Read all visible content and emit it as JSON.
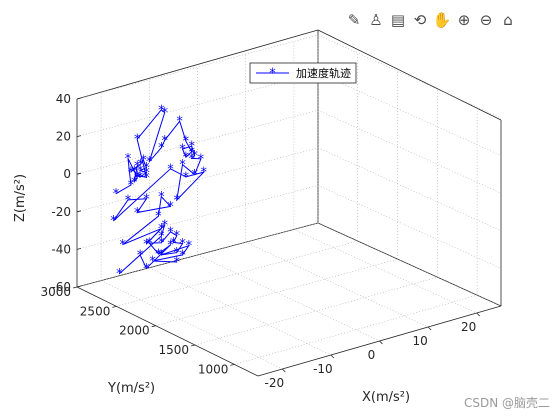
{
  "toolbar": {
    "buttons": [
      {
        "name": "brush-icon",
        "glyph": "✎"
      },
      {
        "name": "datatip-icon",
        "glyph": "♙"
      },
      {
        "name": "legend-toggle-icon",
        "glyph": "▤"
      },
      {
        "name": "rotate-icon",
        "glyph": "⟲"
      },
      {
        "name": "pan-icon",
        "glyph": "✋"
      },
      {
        "name": "zoom-in-icon",
        "glyph": "⊕"
      },
      {
        "name": "zoom-out-icon",
        "glyph": "⊖"
      },
      {
        "name": "home-icon",
        "glyph": "⌂"
      }
    ]
  },
  "watermark": "CSDN @脑壳二",
  "chart_data": {
    "type": "line3d",
    "title": "",
    "legend": {
      "entries": [
        "加速度轨迹"
      ],
      "location": "top-center"
    },
    "xlabel": "X(m/s²)",
    "ylabel": "Y(m/s²)",
    "zlabel": "Z(m/s²)",
    "xlim": [
      -25,
      25
    ],
    "ylim": [
      700,
      3000
    ],
    "zlim": [
      -60,
      40
    ],
    "xticks": [
      "-20",
      "-10",
      "0",
      "10",
      "20"
    ],
    "yticks": [
      "1000",
      "1500",
      "2000",
      "2500",
      "3000"
    ],
    "zticks": [
      "-60",
      "-40",
      "-20",
      "0",
      "20",
      "40"
    ],
    "grid": true,
    "line_color": "#0000ff",
    "marker": "*",
    "series": [
      {
        "name": "加速度轨迹",
        "points": [
          [
            -21.0,
            2750,
            -8
          ],
          [
            -17.9,
            2750,
            -5.5
          ],
          [
            -18.5,
            2750,
            9
          ],
          [
            -17.2,
            2750,
            1.5
          ],
          [
            -16.6,
            2750,
            -2.7
          ],
          [
            -17.2,
            2750,
            -4.3
          ],
          [
            -16.6,
            2750,
            3.6
          ],
          [
            -17.9,
            2750,
            1.5
          ],
          [
            -15.9,
            2750,
            4.2
          ],
          [
            -15.3,
            2750,
            5.9
          ],
          [
            -14.7,
            2750,
            1.5
          ],
          [
            -16.0,
            2750,
            0.9
          ],
          [
            -14.7,
            2750,
            -1.1
          ],
          [
            -16.0,
            2750,
            -2.6
          ],
          [
            -16.6,
            2750,
            -1.5
          ],
          [
            -14.7,
            2750,
            -3.6
          ],
          [
            -16.6,
            2750,
            18.0
          ],
          [
            -11.6,
            2750,
            30.2
          ],
          [
            -10.9,
            2750,
            28.2
          ],
          [
            -14.1,
            2750,
            4.3
          ],
          [
            -11.6,
            2750,
            10.0
          ],
          [
            -10.9,
            2750,
            13.5
          ],
          [
            -7.8,
            2750,
            21.5
          ],
          [
            -6.5,
            2750,
            10.0
          ],
          [
            -5.3,
            2750,
            3.5
          ],
          [
            -6.5,
            2750,
            1.5
          ],
          [
            -7.2,
            2750,
            6.3
          ],
          [
            -5.3,
            2750,
            6.5
          ],
          [
            -4.7,
            2750,
            1.0
          ],
          [
            -5.3,
            2750,
            0.0
          ],
          [
            -3.4,
            2750,
            -1.5
          ],
          [
            -4.7,
            2750,
            -9.0
          ],
          [
            -7.2,
            2750,
            -2.0
          ],
          [
            -8.4,
            2750,
            -20.0
          ],
          [
            -2.8,
            2750,
            -9.0
          ],
          [
            -6.5,
            2750,
            -9.0
          ],
          [
            -9.7,
            2750,
            -2.5
          ],
          [
            -21.5,
            2750,
            -22.0
          ],
          [
            -18.5,
            2750,
            -13.0
          ],
          [
            -14.7,
            2750,
            -15.0
          ],
          [
            -16.6,
            2750,
            -21.0
          ],
          [
            -9.7,
            2750,
            -22.5
          ],
          [
            -11.6,
            2750,
            -16.0
          ],
          [
            -12.2,
            2750,
            -26.0
          ],
          [
            -19.6,
            2750,
            -36.0
          ],
          [
            -11.6,
            2750,
            -33.0
          ],
          [
            -14.7,
            2750,
            -39.0
          ],
          [
            -10.9,
            2750,
            -31.5
          ],
          [
            -11.6,
            2750,
            -37.0
          ],
          [
            -20.3,
            2750,
            -51.0
          ],
          [
            -16.0,
            2750,
            -44.0
          ],
          [
            -14.7,
            2750,
            -52.0
          ],
          [
            -9.7,
            2750,
            -43.0
          ],
          [
            -12.2,
            2750,
            -46.0
          ],
          [
            -14.1,
            2750,
            -39.0
          ],
          [
            -11.6,
            2750,
            -40.5
          ],
          [
            -9.7,
            2750,
            -36.0
          ],
          [
            -8.4,
            2750,
            -39.0
          ],
          [
            -9.1,
            2750,
            -42.0
          ],
          [
            -7.2,
            2750,
            -44.0
          ],
          [
            -8.4,
            2750,
            -48.0
          ],
          [
            -11.6,
            2750,
            -47.0
          ],
          [
            -5.9,
            2750,
            -46.0
          ],
          [
            -7.2,
            2750,
            -50.0
          ],
          [
            -13.4,
            2750,
            -49.0
          ],
          [
            -8.4,
            2750,
            -53.0
          ]
        ]
      }
    ]
  }
}
